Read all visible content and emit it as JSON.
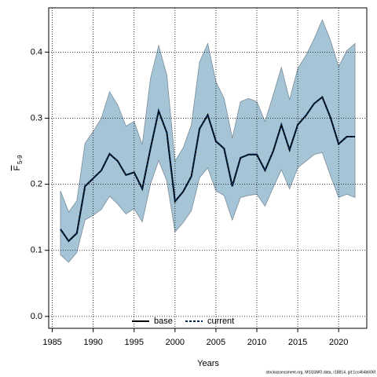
{
  "chart_data": {
    "type": "line",
    "xlabel": "Years",
    "ylabel": {
      "symbol": "F",
      "subscript": "5-9"
    },
    "footnote": "stockassessment.org, MSSSMO.data, r18814, git:1cc464b606f",
    "x": [
      1986,
      1987,
      1988,
      1989,
      1990,
      1991,
      1992,
      1993,
      1994,
      1995,
      1996,
      1997,
      1998,
      1999,
      2000,
      2001,
      2002,
      2003,
      2004,
      2005,
      2006,
      2007,
      2008,
      2009,
      2010,
      2011,
      2012,
      2013,
      2014,
      2015,
      2016,
      2017,
      2018,
      2019,
      2020,
      2021,
      2022
    ],
    "series": [
      {
        "name": "base",
        "color": "#000000",
        "dash": false,
        "values": [
          0.132,
          0.114,
          0.126,
          0.197,
          0.209,
          0.221,
          0.246,
          0.235,
          0.214,
          0.218,
          0.193,
          0.254,
          0.311,
          0.278,
          0.174,
          0.189,
          0.212,
          0.284,
          0.305,
          0.265,
          0.254,
          0.197,
          0.24,
          0.245,
          0.245,
          0.221,
          0.25,
          0.29,
          0.252,
          0.29,
          0.304,
          0.322,
          0.332,
          0.301,
          0.261,
          0.272,
          0.272
        ]
      },
      {
        "name": "current",
        "color": "#00264d",
        "dash": true,
        "values": [
          0.132,
          0.114,
          0.126,
          0.197,
          0.209,
          0.221,
          0.246,
          0.235,
          0.214,
          0.218,
          0.193,
          0.254,
          0.311,
          0.278,
          0.174,
          0.189,
          0.212,
          0.284,
          0.305,
          0.265,
          0.254,
          0.197,
          0.24,
          0.245,
          0.245,
          0.221,
          0.25,
          0.29,
          0.252,
          0.29,
          0.304,
          0.322,
          0.332,
          0.301,
          0.261,
          0.272,
          0.272
        ]
      }
    ],
    "band": {
      "color": "#a5c4d6",
      "upper": [
        0.19,
        0.158,
        0.175,
        0.262,
        0.28,
        0.3,
        0.34,
        0.32,
        0.288,
        0.295,
        0.26,
        0.36,
        0.41,
        0.365,
        0.235,
        0.255,
        0.29,
        0.385,
        0.413,
        0.355,
        0.33,
        0.27,
        0.325,
        0.33,
        0.325,
        0.295,
        0.335,
        0.377,
        0.328,
        0.375,
        0.395,
        0.42,
        0.449,
        0.418,
        0.378,
        0.402,
        0.413
      ],
      "lower": [
        0.093,
        0.082,
        0.097,
        0.146,
        0.153,
        0.162,
        0.182,
        0.17,
        0.155,
        0.163,
        0.143,
        0.2,
        0.236,
        0.205,
        0.128,
        0.142,
        0.16,
        0.21,
        0.225,
        0.19,
        0.183,
        0.146,
        0.18,
        0.183,
        0.185,
        0.167,
        0.195,
        0.222,
        0.193,
        0.225,
        0.235,
        0.245,
        0.248,
        0.213,
        0.18,
        0.185,
        0.18
      ]
    },
    "xlim": [
      1984.56,
      2023.44
    ],
    "ylim": [
      -0.018,
      0.467
    ],
    "xticks": [
      1985,
      1990,
      1995,
      2000,
      2005,
      2010,
      2015,
      2020
    ],
    "yticks": [
      {
        "value": 0,
        "label": "0.0"
      },
      0.1,
      0.2,
      0.3,
      0.4
    ],
    "grid": true,
    "legend": "bottom"
  }
}
